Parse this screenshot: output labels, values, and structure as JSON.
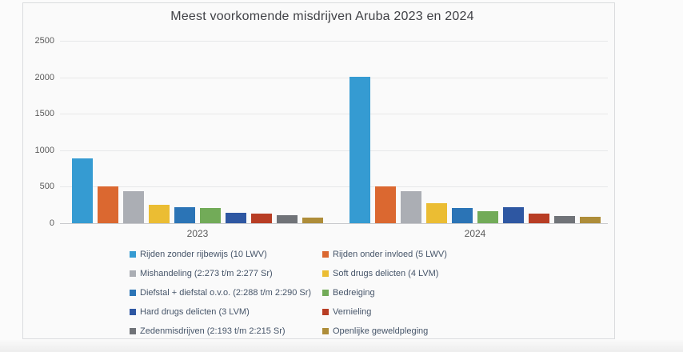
{
  "title": "Meest voorkomende misdrijven Aruba 2023 en 2024",
  "chart_data": {
    "type": "bar",
    "title": "Meest voorkomende misdrijven Aruba 2023 en 2024",
    "categories": [
      "2023",
      "2024"
    ],
    "series": [
      {
        "name": "Rijden zonder rijbewijs (10 LWV)",
        "color": "#2f9cd8",
        "values": [
          890,
          2010
        ]
      },
      {
        "name": "Rijden onder invloed (5 LWV)",
        "color": "#e2662a",
        "values": [
          510,
          510
        ]
      },
      {
        "name": "Mishandeling (2:273 t/m 2:277 Sr)",
        "color": "#acafb5",
        "values": [
          440,
          435
        ]
      },
      {
        "name": "Soft drugs delicten (4 LVM)",
        "color": "#f0be2a",
        "values": [
          255,
          275
        ]
      },
      {
        "name": "Diefstal + diefstal o.v.o. (2:288 t/m 2:290 Sr)",
        "color": "#2674bb",
        "values": [
          220,
          210
        ]
      },
      {
        "name": "Bedreiging",
        "color": "#70ad54",
        "values": [
          205,
          160
        ]
      },
      {
        "name": "Hard drugs delicten (3 LVM)",
        "color": "#2a56a7",
        "values": [
          145,
          220
        ]
      },
      {
        "name": "Vernieling",
        "color": "#be3a1f",
        "values": [
          130,
          130
        ]
      },
      {
        "name": "Zedenmisdrijven (2:193 t/m 2:215 Sr)",
        "color": "#6f7378",
        "values": [
          105,
          95
        ]
      },
      {
        "name": "Openlijke geweldpleging",
        "color": "#b18d33",
        "values": [
          80,
          85
        ]
      }
    ],
    "xlabel": "",
    "ylabel": "",
    "ylim": [
      0,
      2500
    ],
    "yticks": [
      0,
      500,
      1000,
      1500,
      2000,
      2500
    ],
    "grid": true,
    "legend_position": "bottom"
  }
}
